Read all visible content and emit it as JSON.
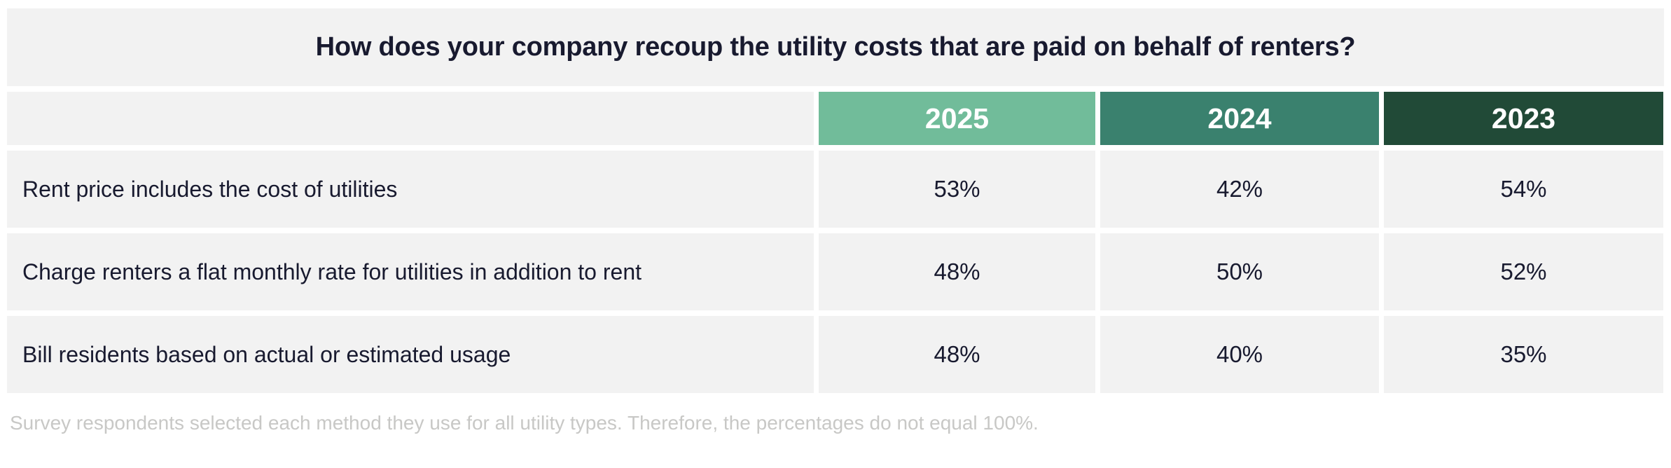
{
  "chart_data": {
    "type": "table",
    "title": "How does your company recoup the utility costs that are paid on behalf of renters?",
    "columns": [
      "2025",
      "2024",
      "2023"
    ],
    "rows": [
      {
        "label": "Rent price includes the cost of utilities",
        "values": [
          "53%",
          "42%",
          "54%"
        ]
      },
      {
        "label": "Charge renters a flat monthly rate for utilities in addition to rent",
        "values": [
          "48%",
          "50%",
          "52%"
        ]
      },
      {
        "label": "Bill residents based on actual or estimated usage",
        "values": [
          "48%",
          "40%",
          "35%"
        ]
      }
    ],
    "footnote": "Survey respondents selected each method they use for all utility types. Therefore, the percentages do not equal 100%."
  },
  "colors": {
    "col2025": "#71BC9A",
    "col2024": "#3A816E",
    "col2023": "#214A37",
    "cell_bg": "#F2F2F2",
    "text": "#181A2F",
    "footnote": "#C8C8C6",
    "page_bg": "#FFFFFF"
  }
}
